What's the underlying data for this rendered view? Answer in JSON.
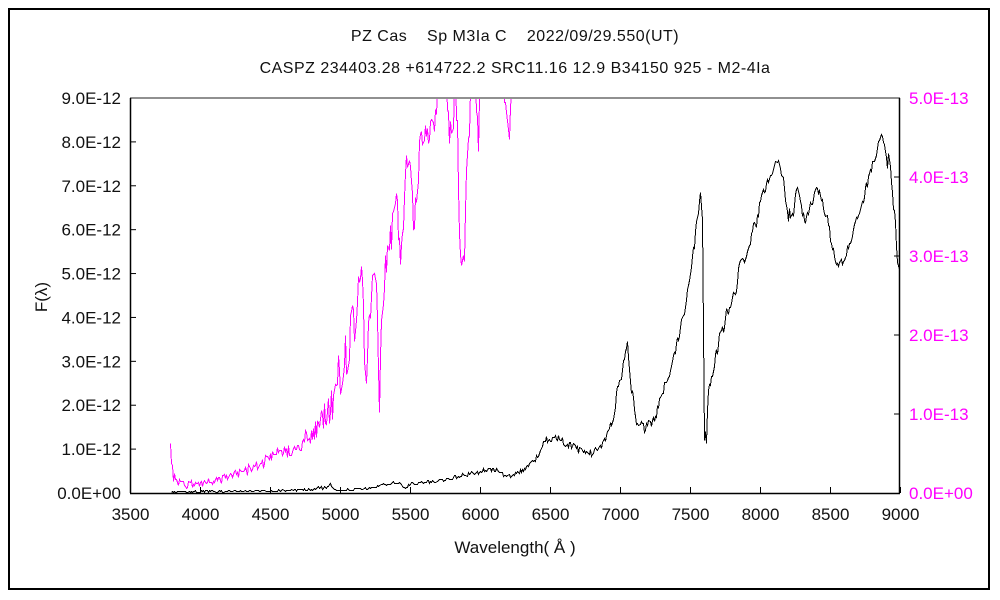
{
  "window": {
    "background": "#ffffff",
    "frame_color": "#000000"
  },
  "header": {
    "title": "PZ Cas    Sp M3Ia C    2022/09/29.550(UT)",
    "subtitle": "CASPZ 234403.28 +614722.2 SRC11.16 12.9 B34150 925 - M2-4Ia"
  },
  "colors": {
    "black_series": "#000000",
    "magenta_series": "#ff00ff",
    "axis": "#000000",
    "plot_top_border": "#909090",
    "text": "#111111"
  },
  "chart_data": {
    "type": "line",
    "title": "PZ Cas    Sp M3Ia C    2022/09/29.550(UT)",
    "subtitle": "CASPZ 234403.28 +614722.2 SRC11.16 12.9 B34150 925 - M2-4Ia",
    "xlabel": "Wavelength( Å )",
    "ylabel_left": "F(λ)",
    "x_range": [
      3500,
      9000
    ],
    "x_ticks": [
      3500,
      4000,
      4500,
      5000,
      5500,
      6000,
      6500,
      7000,
      7500,
      8000,
      8500,
      9000
    ],
    "grid": false,
    "legend": "none",
    "left_axis": {
      "unit": "erg s-1 cm-2 A-1 (1e-12 steps)",
      "range": [
        0,
        9e-12
      ],
      "tick_labels": [
        "0.0E+00",
        "1.0E-12",
        "2.0E-12",
        "3.0E-12",
        "4.0E-12",
        "5.0E-12",
        "6.0E-12",
        "7.0E-12",
        "8.0E-12",
        "9.0E-12"
      ],
      "label_color": "#111111"
    },
    "right_axis": {
      "unit": "erg s-1 cm-2 A-1 (1e-13 steps)",
      "range": [
        0,
        5e-13
      ],
      "tick_labels": [
        "0.0E+00",
        "1.0E-13",
        "2.0E-13",
        "3.0E-13",
        "4.0E-13",
        "5.0E-13"
      ],
      "label_color": "#ff00ff"
    },
    "series": [
      {
        "name": "pz-cas-flux-red-spectrum",
        "axis": "left",
        "color": "#000000",
        "value_unit": "1e-12",
        "axis_max": 9,
        "points": [
          [
            3790,
            0.03,
            0.02
          ],
          [
            3950,
            0.04,
            0.02
          ],
          [
            4200,
            0.05,
            0.02
          ],
          [
            4500,
            0.06,
            0.02
          ],
          [
            4750,
            0.08,
            0.03
          ],
          [
            4880,
            0.14,
            0.04
          ],
          [
            4930,
            0.18,
            0.04
          ],
          [
            4965,
            0.07,
            0.02
          ],
          [
            5050,
            0.09,
            0.03
          ],
          [
            5200,
            0.11,
            0.03
          ],
          [
            5330,
            0.22,
            0.04
          ],
          [
            5420,
            0.25,
            0.04
          ],
          [
            5465,
            0.1,
            0.03
          ],
          [
            5510,
            0.23,
            0.04
          ],
          [
            5650,
            0.27,
            0.04
          ],
          [
            5800,
            0.35,
            0.05
          ],
          [
            5920,
            0.45,
            0.05
          ],
          [
            6030,
            0.52,
            0.05
          ],
          [
            6110,
            0.55,
            0.05
          ],
          [
            6180,
            0.38,
            0.04
          ],
          [
            6260,
            0.46,
            0.05
          ],
          [
            6330,
            0.6,
            0.06
          ],
          [
            6400,
            0.8,
            0.08
          ],
          [
            6440,
            1.05,
            0.1
          ],
          [
            6480,
            1.25,
            0.1
          ],
          [
            6540,
            1.3,
            0.1
          ],
          [
            6620,
            1.12,
            0.09
          ],
          [
            6710,
            0.98,
            0.08
          ],
          [
            6800,
            0.92,
            0.08
          ],
          [
            6870,
            1.1,
            0.09
          ],
          [
            6930,
            1.55,
            0.12
          ],
          [
            6980,
            2.3,
            0.15
          ],
          [
            7020,
            3.0,
            0.12
          ],
          [
            7048,
            3.45,
            0.06
          ],
          [
            7075,
            2.4,
            0.15
          ],
          [
            7115,
            1.65,
            0.12
          ],
          [
            7180,
            1.45,
            0.1
          ],
          [
            7250,
            1.75,
            0.12
          ],
          [
            7310,
            2.35,
            0.12
          ],
          [
            7370,
            3.0,
            0.12
          ],
          [
            7430,
            3.8,
            0.14
          ],
          [
            7480,
            4.6,
            0.15
          ],
          [
            7520,
            5.5,
            0.15
          ],
          [
            7555,
            6.4,
            0.12
          ],
          [
            7572,
            6.9,
            0.05
          ],
          [
            7588,
            6.3,
            0.1
          ],
          [
            7598,
            1.4,
            0.2
          ],
          [
            7612,
            1.2,
            0.15
          ],
          [
            7625,
            2.3,
            0.25
          ],
          [
            7660,
            2.8,
            0.15
          ],
          [
            7710,
            3.5,
            0.15
          ],
          [
            7760,
            4.1,
            0.16
          ],
          [
            7810,
            4.5,
            0.18
          ],
          [
            7860,
            5.2,
            0.18
          ],
          [
            7910,
            5.6,
            0.15
          ],
          [
            7960,
            6.1,
            0.15
          ],
          [
            8010,
            6.7,
            0.14
          ],
          [
            8060,
            7.2,
            0.12
          ],
          [
            8110,
            7.6,
            0.1
          ],
          [
            8135,
            7.55,
            0.12
          ],
          [
            8170,
            7.0,
            0.18
          ],
          [
            8200,
            6.4,
            0.25
          ],
          [
            8235,
            6.4,
            0.18
          ],
          [
            8260,
            6.95,
            0.14
          ],
          [
            8290,
            6.55,
            0.18
          ],
          [
            8320,
            6.1,
            0.14
          ],
          [
            8365,
            6.6,
            0.13
          ],
          [
            8405,
            7.0,
            0.12
          ],
          [
            8450,
            6.6,
            0.12
          ],
          [
            8500,
            5.85,
            0.12
          ],
          [
            8545,
            5.15,
            0.09
          ],
          [
            8590,
            5.3,
            0.1
          ],
          [
            8650,
            5.85,
            0.11
          ],
          [
            8710,
            6.45,
            0.11
          ],
          [
            8770,
            7.15,
            0.11
          ],
          [
            8825,
            7.75,
            0.1
          ],
          [
            8862,
            8.2,
            0.08
          ],
          [
            8895,
            7.85,
            0.22
          ],
          [
            8925,
            7.4,
            0.28
          ],
          [
            8955,
            6.4,
            0.18
          ],
          [
            8982,
            5.35,
            0.12
          ],
          [
            9000,
            4.95,
            0.05
          ]
        ]
      },
      {
        "name": "pz-cas-flux-blue-spectrum",
        "axis": "right",
        "color": "#ff00ff",
        "value_unit": "1e-13",
        "axis_max": 5,
        "points": [
          [
            3785,
            0.62,
            0.04
          ],
          [
            3795,
            0.34,
            0.12
          ],
          [
            3815,
            0.2,
            0.1
          ],
          [
            3840,
            0.14,
            0.07
          ],
          [
            3880,
            0.11,
            0.05
          ],
          [
            3940,
            0.12,
            0.05
          ],
          [
            4000,
            0.13,
            0.05
          ],
          [
            4060,
            0.15,
            0.05
          ],
          [
            4120,
            0.17,
            0.05
          ],
          [
            4180,
            0.19,
            0.06
          ],
          [
            4250,
            0.24,
            0.06
          ],
          [
            4330,
            0.29,
            0.07
          ],
          [
            4410,
            0.35,
            0.07
          ],
          [
            4490,
            0.43,
            0.08
          ],
          [
            4560,
            0.5,
            0.09
          ],
          [
            4630,
            0.55,
            0.1
          ],
          [
            4700,
            0.62,
            0.1
          ],
          [
            4760,
            0.69,
            0.12
          ],
          [
            4820,
            0.8,
            0.13
          ],
          [
            4870,
            0.92,
            0.16
          ],
          [
            4920,
            1.05,
            0.28
          ],
          [
            4970,
            1.3,
            0.38
          ],
          [
            5020,
            1.6,
            0.38
          ],
          [
            5070,
            1.95,
            0.38
          ],
          [
            5120,
            2.3,
            0.4
          ],
          [
            5158,
            2.65,
            0.28
          ],
          [
            5183,
            1.3,
            0.18
          ],
          [
            5210,
            2.4,
            0.3
          ],
          [
            5248,
            2.95,
            0.28
          ],
          [
            5278,
            1.15,
            0.14
          ],
          [
            5305,
            2.55,
            0.28
          ],
          [
            5355,
            3.25,
            0.3
          ],
          [
            5398,
            3.65,
            0.28
          ],
          [
            5428,
            3.05,
            0.22
          ],
          [
            5465,
            3.95,
            0.28
          ],
          [
            5498,
            4.35,
            0.28
          ],
          [
            5528,
            3.35,
            0.28
          ],
          [
            5565,
            4.45,
            0.28
          ],
          [
            5605,
            4.75,
            0.22
          ],
          [
            5645,
            4.45,
            0.28
          ],
          [
            5685,
            4.95,
            0.18
          ],
          [
            5715,
            5.2,
            0.18
          ],
          [
            5755,
            5.35,
            0.25
          ],
          [
            5788,
            4.45,
            0.38
          ],
          [
            5820,
            5.35,
            0.2
          ],
          [
            5858,
            3.15,
            0.35
          ],
          [
            5885,
            2.8,
            0.18
          ],
          [
            5912,
            4.6,
            0.28
          ],
          [
            5950,
            5.35,
            0.25
          ],
          [
            5988,
            4.55,
            0.28
          ],
          [
            6020,
            5.45,
            0.18
          ],
          [
            6080,
            5.65,
            0.18
          ],
          [
            6148,
            5.5,
            0.25
          ],
          [
            6180,
            4.85,
            0.28
          ],
          [
            6205,
            4.5,
            0.22
          ],
          [
            6232,
            5.25,
            0.25
          ],
          [
            6262,
            5.65,
            0.15
          ],
          [
            6300,
            5.85,
            0.08
          ]
        ]
      }
    ]
  }
}
